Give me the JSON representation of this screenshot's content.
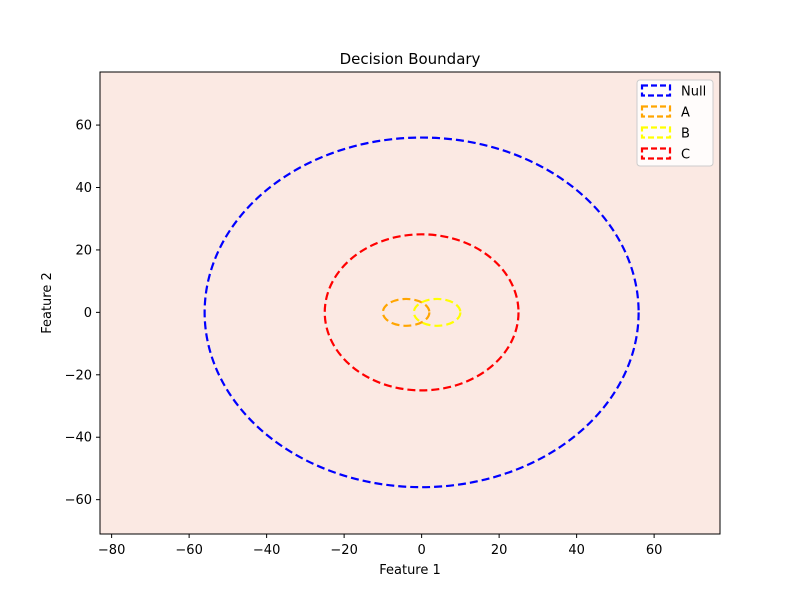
{
  "chart_data": {
    "type": "line",
    "title": "Decision Boundary",
    "xlabel": "Feature 1",
    "ylabel": "Feature 2",
    "xlim": [
      -83,
      77
    ],
    "ylim": [
      -71,
      77
    ],
    "xticks": [
      -80,
      -60,
      -40,
      -20,
      0,
      20,
      40,
      60
    ],
    "yticks": [
      -60,
      -40,
      -20,
      0,
      20,
      40,
      60
    ],
    "grid": false,
    "background_color": "#fbe9e3",
    "legend_position": "upper-right",
    "line_style": "dashed",
    "series": [
      {
        "name": "Null",
        "color": "#0000ff",
        "shape": "ellipse",
        "center": [
          0,
          0
        ],
        "radius_x": 56,
        "radius_y": 56
      },
      {
        "name": "A",
        "color": "#ffa500",
        "shape": "ellipse",
        "center": [
          -4,
          0
        ],
        "radius_x": 6,
        "radius_y": 4.3
      },
      {
        "name": "B",
        "color": "#ffff00",
        "shape": "ellipse",
        "center": [
          4,
          0
        ],
        "radius_x": 6,
        "radius_y": 4.3
      },
      {
        "name": "C",
        "color": "#ff0000",
        "shape": "ellipse",
        "center": [
          0,
          0
        ],
        "radius_x": 25,
        "radius_y": 25
      }
    ]
  }
}
